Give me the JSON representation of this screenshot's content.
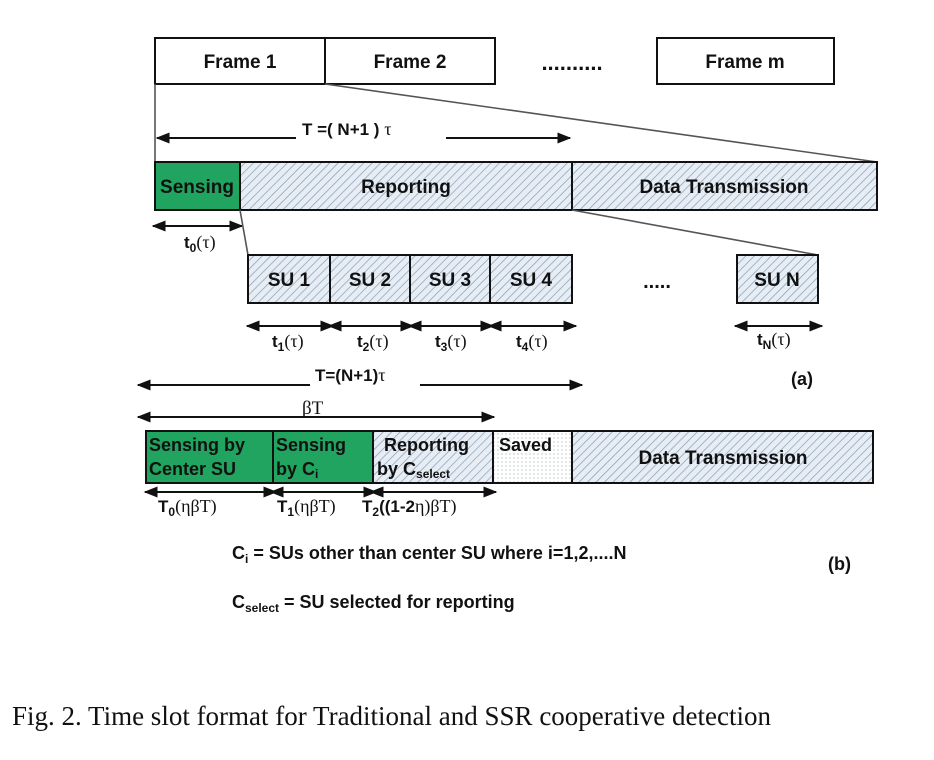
{
  "frames": [
    "Frame 1",
    "Frame 2",
    "Frame m"
  ],
  "frames_dots": "..........",
  "period_a": {
    "prefix": "T =( N+1 ) ",
    "tau": "τ"
  },
  "slots_a": {
    "sensing": "Sensing",
    "reporting": "Reporting",
    "data": "Data Transmission"
  },
  "t0": {
    "t": "t",
    "sub": "0",
    "arg": "(τ)"
  },
  "su_blocks": [
    "SU 1",
    "SU 2",
    "SU 3",
    "SU 4"
  ],
  "su_dots": ".....",
  "su_n": "SU N",
  "su_times": [
    {
      "t": "t",
      "sub": "1",
      "arg": "(τ)"
    },
    {
      "t": "t",
      "sub": "2",
      "arg": "(τ)"
    },
    {
      "t": "t",
      "sub": "3",
      "arg": "(τ)"
    },
    {
      "t": "t",
      "sub": "4",
      "arg": "(τ)"
    }
  ],
  "tn": {
    "t": "t",
    "sub": "N",
    "arg": "(τ)"
  },
  "period_b": {
    "prefix": "T=(N+1)",
    "tau": "τ"
  },
  "label_a": "(a)",
  "beta_t": "βT",
  "slots_b": {
    "center_line1": "Sensing by",
    "center_line2": "Center SU",
    "ci_line1": "Sensing",
    "ci_line2_prefix": "by C",
    "ci_line2_sub": "i",
    "rep_line1": "Reporting",
    "rep_line2_prefix": "by C",
    "rep_line2_sub": "select",
    "saved": "Saved",
    "data": "Data Transmission"
  },
  "T_labels": [
    {
      "t": "T",
      "sub": "0",
      "arg": "(ηβT)"
    },
    {
      "t": "T",
      "sub": "1",
      "arg": "(ηβT)"
    },
    {
      "t": "T",
      "sub": "2",
      "arg": "((1-2",
      "arg_eta": "η",
      "arg_end": ")βT)"
    }
  ],
  "def_ci": {
    "c": "C",
    "sub": "i",
    "text": " = SUs other than center SU where i=1,2,....N"
  },
  "def_cselect": {
    "c": "C",
    "sub": "select",
    "text": " = SU selected for reporting"
  },
  "label_b": "(b)",
  "caption": "Fig. 2.  Time slot format for Traditional and SSR cooperative detection",
  "colors": {
    "green": "#21a45f",
    "hatch_bg": "#e6edf5",
    "hatch_line": "#8a9cb0",
    "stroke": "#111111"
  }
}
